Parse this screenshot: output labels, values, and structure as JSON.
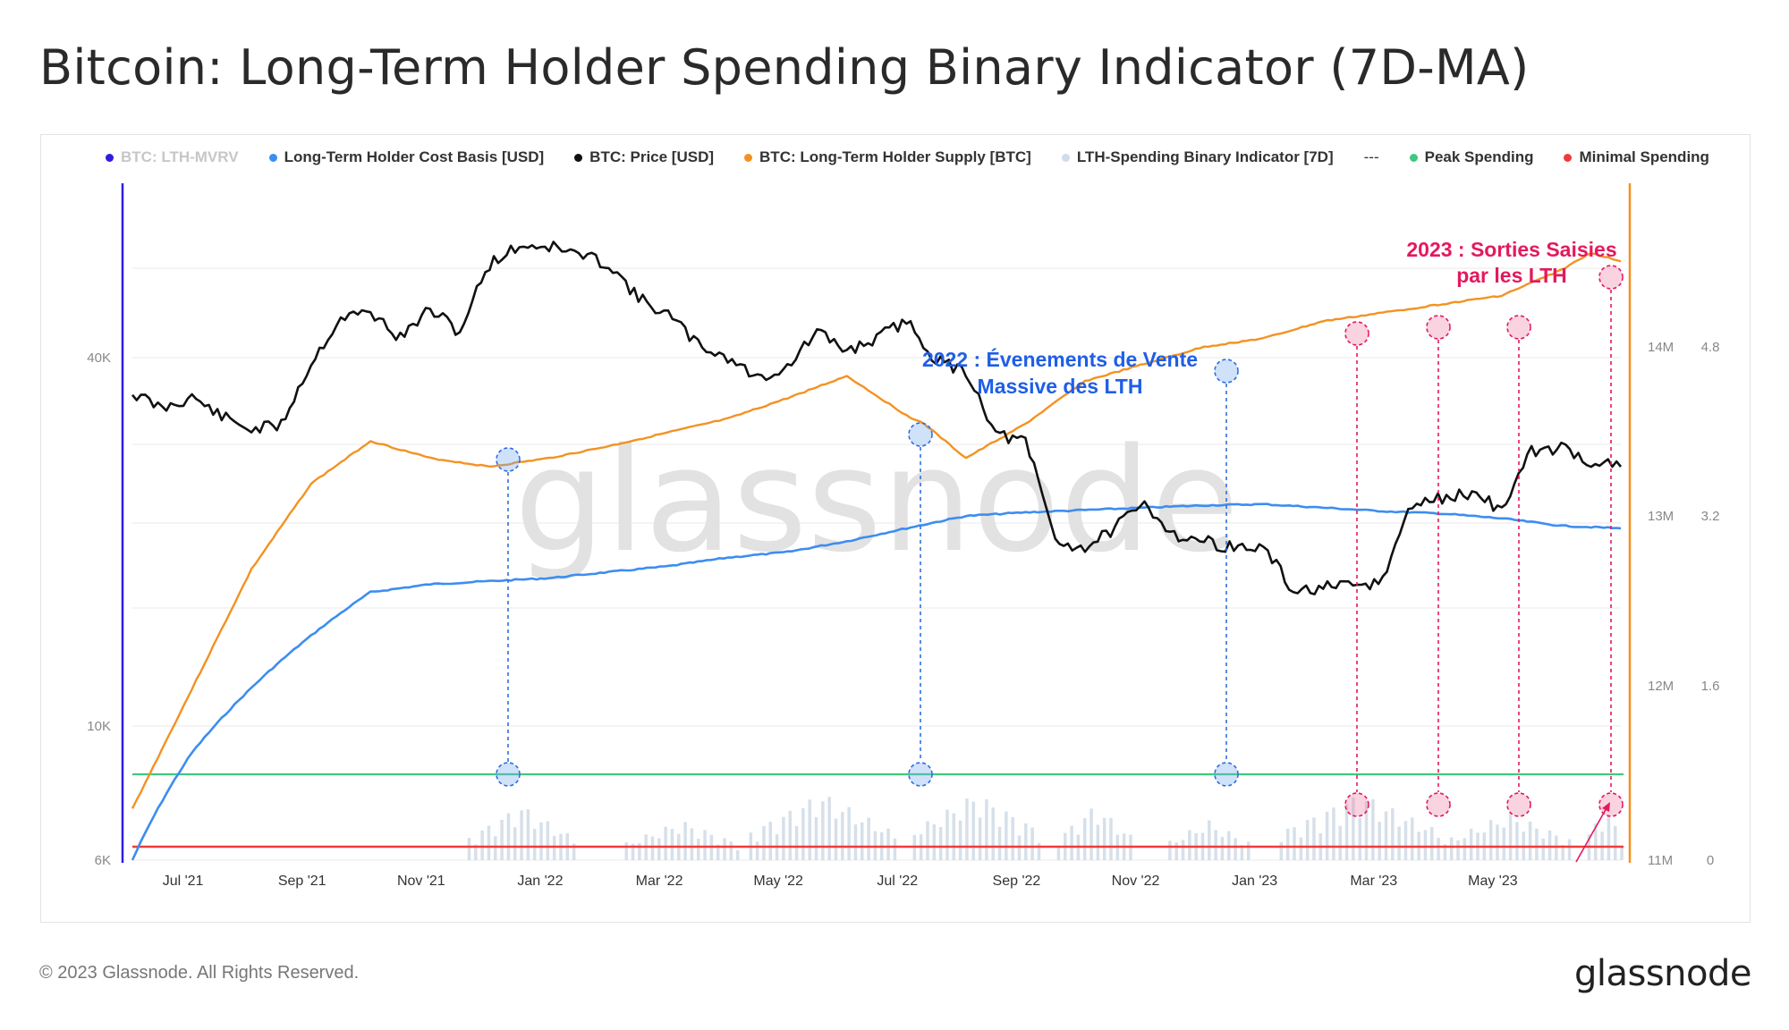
{
  "title": "Bitcoin: Long-Term Holder Spending Binary Indicator (7D-MA)",
  "footer": "© 2023 Glassnode. All Rights Reserved.",
  "brand": "glassnode",
  "watermark": "glassnode",
  "legend": [
    {
      "label": "BTC: LTH-MVRV",
      "color": "#2e1de0",
      "dim": true
    },
    {
      "label": "Long-Term Holder Cost Basis [USD]",
      "color": "#3d8df0",
      "dim": false
    },
    {
      "label": "BTC: Price [USD]",
      "color": "#111111",
      "dim": false
    },
    {
      "label": "BTC: Long-Term Holder Supply [BTC]",
      "color": "#f39222",
      "dim": false
    },
    {
      "label": "LTH-Spending Binary Indicator [7D]",
      "color": "#cfdcea",
      "dim": false
    },
    {
      "label": "---",
      "color": "",
      "dim": false,
      "dash": true
    },
    {
      "label": "Peak Spending",
      "color": "#3ec97e",
      "dim": false
    },
    {
      "label": "Minimal Spending",
      "color": "#ef3b3b",
      "dim": false
    }
  ],
  "annotations": {
    "blue_line1": "2022 : Évenements de Vente",
    "blue_line2": "Massive des  LTH",
    "red_line1": "2023 : Sorties Saisies",
    "red_line2": "par les LTH"
  },
  "chart_data": {
    "type": "line",
    "x_ticks": [
      "Jul '21",
      "Sep '21",
      "Nov '21",
      "Jan '22",
      "Mar '22",
      "May '22",
      "Jul '22",
      "Sep '22",
      "Nov '22",
      "Jan '23",
      "Mar '23",
      "May '23"
    ],
    "y_left_ticks": [
      "6K",
      "10K",
      "40K"
    ],
    "y_left_scale": "log",
    "y_right_supply_ticks": [
      "11M",
      "12M",
      "13M",
      "14M"
    ],
    "y_right_indicator_ticks": [
      "0",
      "1.6",
      "3.2",
      "4.8"
    ],
    "series": [
      {
        "name": "BTC: Price [USD]",
        "color": "#111111",
        "months": [
          0,
          0.5,
          1,
          1.5,
          2,
          2.5,
          3,
          3.5,
          4,
          4.5,
          5,
          5.5,
          6,
          6.5,
          7,
          7.5,
          8,
          8.5,
          9,
          9.5,
          10,
          10.5,
          11,
          11.5,
          12,
          12.5,
          13,
          13.5,
          14,
          14.5,
          15,
          15.5,
          16,
          16.5,
          17,
          17.5,
          18,
          18.5,
          19,
          19.5,
          20,
          20.5,
          21,
          21.5,
          22,
          22.5,
          23,
          23.5,
          24,
          24.5,
          25
        ],
        "values": [
          35000,
          33000,
          34500,
          32000,
          30500,
          31000,
          39000,
          46500,
          47500,
          43000,
          48000,
          44000,
          57000,
          61000,
          61000,
          59000,
          57000,
          50000,
          47000,
          42000,
          40000,
          37000,
          38500,
          44000,
          41000,
          43000,
          46000,
          39500,
          38000,
          30000,
          29000,
          20000,
          19500,
          21000,
          23000,
          20500,
          20000,
          19500,
          19500,
          16500,
          16800,
          16800,
          17200,
          23000,
          23500,
          24000,
          22500,
          28000,
          28500,
          27000,
          26500
        ],
        "note": "values read off the log price axis; x in months since Jun 2021"
      },
      {
        "name": "Long-Term Holder Cost Basis [USD]",
        "color": "#3d8df0",
        "months": [
          0,
          1,
          2,
          3,
          4,
          5,
          6,
          7,
          8,
          9,
          10,
          11,
          12,
          13,
          14,
          15,
          16,
          17,
          18,
          19,
          20,
          21,
          22,
          23,
          24,
          25
        ],
        "values": [
          6000,
          9000,
          11500,
          14000,
          16500,
          17000,
          17200,
          17400,
          17800,
          18200,
          18800,
          19200,
          20000,
          21000,
          22000,
          22300,
          22500,
          22700,
          22900,
          23000,
          22700,
          22400,
          22200,
          21800,
          21200,
          21000
        ]
      },
      {
        "name": "BTC: Long-Term Holder Supply [BTC]",
        "color": "#f39222",
        "months": [
          0,
          1,
          2,
          3,
          4,
          5,
          6,
          7,
          8,
          9,
          10,
          11,
          12,
          13,
          13.3,
          14,
          15,
          16,
          17,
          18,
          19,
          20,
          21,
          22,
          23,
          24,
          24.5,
          25
        ],
        "values": [
          11.3,
          12.0,
          12.7,
          13.2,
          13.45,
          13.35,
          13.3,
          13.35,
          13.42,
          13.5,
          13.58,
          13.7,
          13.83,
          13.6,
          13.55,
          13.35,
          13.55,
          13.8,
          13.9,
          14.0,
          14.05,
          14.15,
          14.2,
          14.25,
          14.3,
          14.45,
          14.55,
          14.5
        ],
        "note": "supply in millions BTC"
      },
      {
        "name": "LTH-Spending Binary Indicator [7D]",
        "color": "#cfdcea",
        "note": "binary indicator 0-1 scaled bars; peaks at Dec '21, Jun '22, Nov '22, Feb/Mar/Apr/May '23"
      }
    ],
    "peak_spending_level": 1,
    "minimal_spending_level": 0
  }
}
